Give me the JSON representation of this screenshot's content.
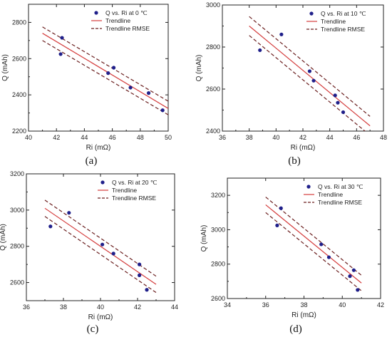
{
  "colors": {
    "point": "#1f1f8a",
    "trend": "#d43c3c",
    "rmse": "#6b1f1f",
    "axis": "#222222"
  },
  "chart_data": [
    {
      "type": "scatter",
      "panel_label": "(a)",
      "xlabel": "Ri (mΩ)",
      "ylabel": "Q (mAh)",
      "xlim": [
        40,
        50
      ],
      "ylim": [
        2200,
        2900
      ],
      "xticks": [
        40,
        42,
        44,
        46,
        48,
        50
      ],
      "yticks": [
        2200,
        2400,
        2600,
        2800
      ],
      "legend": {
        "position": "top-right",
        "points": "Q vs. Ri at 0 ℃",
        "trend": "Trendline",
        "rmse": "Trendline RMSE"
      },
      "points": [
        {
          "x": 42.4,
          "y": 2715
        },
        {
          "x": 42.3,
          "y": 2625
        },
        {
          "x": 45.7,
          "y": 2520
        },
        {
          "x": 46.1,
          "y": 2550
        },
        {
          "x": 47.3,
          "y": 2440
        },
        {
          "x": 48.6,
          "y": 2410
        },
        {
          "x": 49.6,
          "y": 2315
        }
      ],
      "trendline": {
        "x": [
          41,
          50
        ],
        "y": [
          2740,
          2325
        ]
      },
      "rmse_upper": {
        "x": [
          41,
          50
        ],
        "y": [
          2775,
          2365
        ]
      },
      "rmse_lower": {
        "x": [
          41,
          50
        ],
        "y": [
          2700,
          2290
        ]
      }
    },
    {
      "type": "scatter",
      "panel_label": "(b)",
      "xlabel": "Ri (mΩ)",
      "ylabel": "Q (mAh)",
      "xlim": [
        36,
        48
      ],
      "ylim": [
        2400,
        3000
      ],
      "xticks": [
        36,
        38,
        40,
        42,
        44,
        46,
        48
      ],
      "yticks": [
        2400,
        2600,
        2800,
        3000
      ],
      "legend": {
        "position": "top-right",
        "points": "Q vs. Ri at 10 ℃",
        "trend": "Trendline",
        "rmse": "Trendline RMSE"
      },
      "points": [
        {
          "x": 38.8,
          "y": 2785
        },
        {
          "x": 40.4,
          "y": 2860
        },
        {
          "x": 42.5,
          "y": 2685
        },
        {
          "x": 42.8,
          "y": 2640
        },
        {
          "x": 44.4,
          "y": 2570
        },
        {
          "x": 44.6,
          "y": 2535
        },
        {
          "x": 45.0,
          "y": 2490
        }
      ],
      "trendline": {
        "x": [
          38,
          47
        ],
        "y": [
          2900,
          2425
        ]
      },
      "rmse_upper": {
        "x": [
          38,
          47
        ],
        "y": [
          2945,
          2470
        ]
      },
      "rmse_lower": {
        "x": [
          38,
          47
        ],
        "y": [
          2855,
          2380
        ]
      }
    },
    {
      "type": "scatter",
      "panel_label": "(c)",
      "xlabel": "Ri (mΩ)",
      "ylabel": "Q (mAh)",
      "xlim": [
        36,
        44
      ],
      "ylim": [
        2500,
        3200
      ],
      "xticks": [
        36,
        38,
        40,
        42,
        44
      ],
      "yticks": [
        2600,
        2800,
        3000,
        3200
      ],
      "legend": {
        "position": "top-right",
        "points": "Q vs. Ri at 20 ℃",
        "trend": "Trendline",
        "rmse": "Trendline RMSE"
      },
      "points": [
        {
          "x": 37.3,
          "y": 2910
        },
        {
          "x": 38.3,
          "y": 2985
        },
        {
          "x": 40.1,
          "y": 2810
        },
        {
          "x": 40.7,
          "y": 2760
        },
        {
          "x": 42.1,
          "y": 2700
        },
        {
          "x": 42.1,
          "y": 2640
        },
        {
          "x": 42.5,
          "y": 2560
        }
      ],
      "trendline": {
        "x": [
          37,
          43
        ],
        "y": [
          3010,
          2590
        ]
      },
      "rmse_upper": {
        "x": [
          37,
          43
        ],
        "y": [
          3055,
          2635
        ]
      },
      "rmse_lower": {
        "x": [
          37,
          43
        ],
        "y": [
          2965,
          2545
        ]
      }
    },
    {
      "type": "scatter",
      "panel_label": "(d)",
      "xlabel": "Ri (mΩ)",
      "ylabel": "Q (mAh)",
      "xlim": [
        34,
        42
      ],
      "ylim": [
        2600,
        3300
      ],
      "xticks": [
        34,
        36,
        38,
        40,
        42
      ],
      "yticks": [
        2600,
        2800,
        3000,
        3200
      ],
      "legend": {
        "position": "top-right",
        "points": "Q vs. Ri at 30 ℃",
        "trend": "Trendline",
        "rmse": "Trendline RMSE"
      },
      "points": [
        {
          "x": 36.6,
          "y": 3025
        },
        {
          "x": 36.8,
          "y": 3125
        },
        {
          "x": 38.9,
          "y": 2915
        },
        {
          "x": 39.3,
          "y": 2840
        },
        {
          "x": 40.4,
          "y": 2730
        },
        {
          "x": 40.6,
          "y": 2765
        },
        {
          "x": 40.8,
          "y": 2650
        }
      ],
      "trendline": {
        "x": [
          36,
          41
        ],
        "y": [
          3145,
          2690
        ]
      },
      "rmse_upper": {
        "x": [
          36,
          41
        ],
        "y": [
          3190,
          2735
        ]
      },
      "rmse_lower": {
        "x": [
          36,
          41
        ],
        "y": [
          3100,
          2645
        ]
      }
    }
  ]
}
